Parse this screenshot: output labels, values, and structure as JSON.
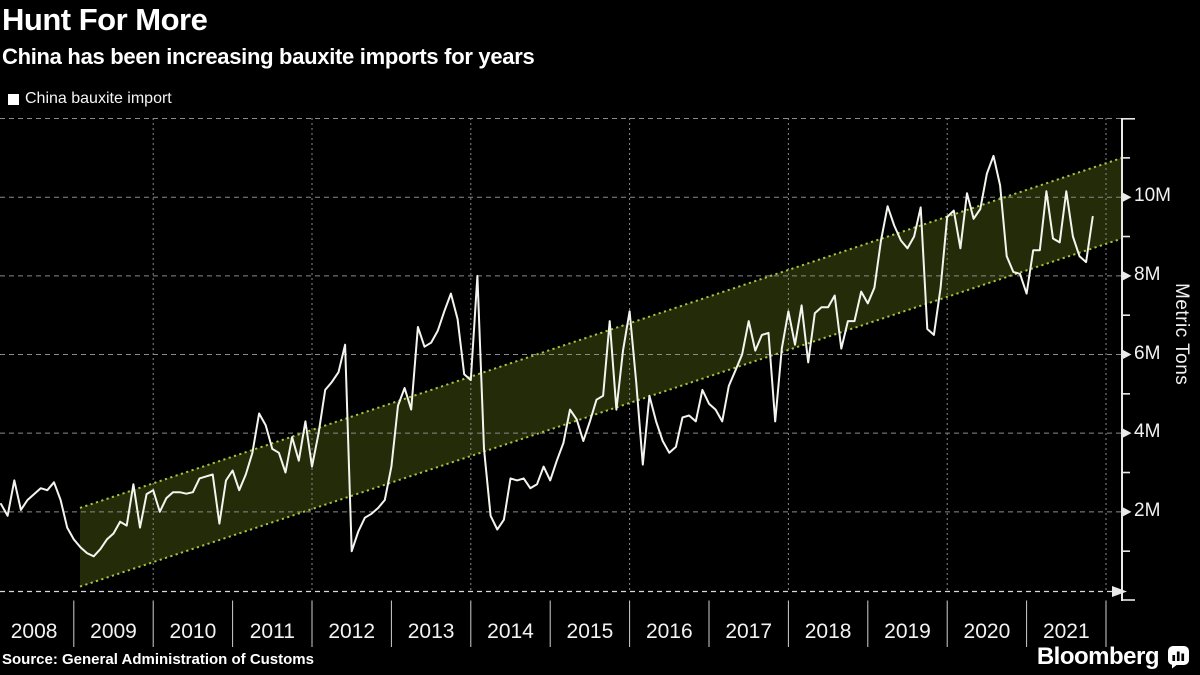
{
  "header": {
    "title": "Hunt For More",
    "subtitle": "China has been increasing bauxite imports for years"
  },
  "legend": {
    "label": "China bauxite import"
  },
  "y_axis": {
    "title": "Metric Tons",
    "tick_labels": [
      "2M",
      "4M",
      "6M",
      "8M",
      "10M"
    ],
    "tick_values": [
      2,
      4,
      6,
      8,
      10
    ],
    "minor_tick_values": [
      1,
      3,
      5,
      7,
      9,
      11
    ],
    "grid_values": [
      2,
      4,
      6,
      8,
      10,
      12
    ],
    "range": [
      0,
      12
    ]
  },
  "x_axis": {
    "years": [
      "2008",
      "2009",
      "2010",
      "2011",
      "2012",
      "2013",
      "2014",
      "2015",
      "2016",
      "2017",
      "2018",
      "2019",
      "2020",
      "2021"
    ]
  },
  "footer": {
    "source": "Source: General Administration of Customs",
    "brand": "Bloomberg"
  },
  "colors": {
    "background": "#000000",
    "text": "#ffffff",
    "line": "#f5f5ef",
    "channel_fill": "#232b09",
    "channel_border": "#a6c43f",
    "grid": "#8a8a8a",
    "axis": "#e9e9e9",
    "x_axis_line": "#d9d9d9",
    "year_separator": "#d0d0d0"
  },
  "chart_data": {
    "type": "line",
    "title": "Hunt For More",
    "subtitle": "China has been increasing bauxite imports for years",
    "ylabel": "Metric Tons",
    "ylim": [
      0,
      12
    ],
    "grid": "dashed, horizontal every 2M and vertical every 2 years",
    "legend_position": "top-left",
    "x_tick_labels": [
      "2008",
      "2009",
      "2010",
      "2011",
      "2012",
      "2013",
      "2014",
      "2015",
      "2016",
      "2017",
      "2018",
      "2019",
      "2020",
      "2021"
    ],
    "series": [
      {
        "name": "China bauxite import",
        "unit": "million metric tons per month",
        "frequency": "monthly",
        "start": "2008-01",
        "end": "2021-10",
        "values": [
          2.2,
          1.9,
          2.8,
          2.05,
          2.3,
          2.45,
          2.6,
          2.55,
          2.75,
          2.3,
          1.6,
          1.3,
          1.1,
          0.95,
          0.87,
          1.05,
          1.3,
          1.45,
          1.75,
          1.65,
          2.7,
          1.6,
          2.45,
          2.55,
          2.0,
          2.35,
          2.5,
          2.5,
          2.46,
          2.5,
          2.85,
          2.9,
          2.95,
          1.7,
          2.8,
          3.05,
          2.55,
          2.95,
          3.5,
          4.5,
          4.2,
          3.6,
          3.5,
          3.0,
          3.9,
          3.3,
          4.3,
          3.15,
          4.0,
          5.1,
          5.3,
          5.55,
          6.25,
          1.0,
          1.5,
          1.85,
          1.95,
          2.1,
          2.3,
          3.15,
          4.7,
          5.15,
          4.6,
          6.7,
          6.2,
          6.3,
          6.6,
          7.1,
          7.55,
          6.9,
          5.5,
          5.35,
          8.0,
          3.6,
          1.9,
          1.55,
          1.8,
          2.85,
          2.8,
          2.85,
          2.6,
          2.7,
          3.15,
          2.8,
          3.3,
          3.75,
          4.6,
          4.35,
          3.8,
          4.3,
          4.85,
          4.95,
          6.85,
          4.6,
          6.1,
          7.1,
          5.3,
          3.2,
          4.95,
          4.3,
          3.8,
          3.5,
          3.65,
          4.4,
          4.45,
          4.3,
          5.1,
          4.75,
          4.6,
          4.3,
          5.2,
          5.6,
          6.0,
          6.85,
          6.1,
          6.5,
          6.55,
          4.3,
          6.15,
          7.1,
          6.25,
          7.25,
          5.8,
          7.05,
          7.2,
          7.2,
          7.5,
          6.15,
          6.85,
          6.85,
          7.6,
          7.3,
          7.7,
          8.9,
          9.77,
          9.28,
          8.9,
          8.7,
          9.0,
          9.74,
          6.65,
          6.5,
          7.7,
          9.5,
          9.66,
          8.7,
          10.1,
          9.45,
          9.7,
          10.6,
          11.05,
          10.3,
          8.5,
          8.1,
          8.05,
          7.55,
          8.65,
          8.65,
          10.15,
          8.95,
          8.85,
          10.15,
          9.0,
          8.5,
          8.35,
          9.5
        ]
      }
    ],
    "trend_channel": {
      "description": "ascending channel, dark green fill with dotted light-green borders",
      "starts_at": "2008-12",
      "ends_at": "right edge of plot (beyond last data point)",
      "top_from": 2.1,
      "top_to": 11.0,
      "bottom_from": 0.1,
      "bottom_to": 8.95
    }
  }
}
